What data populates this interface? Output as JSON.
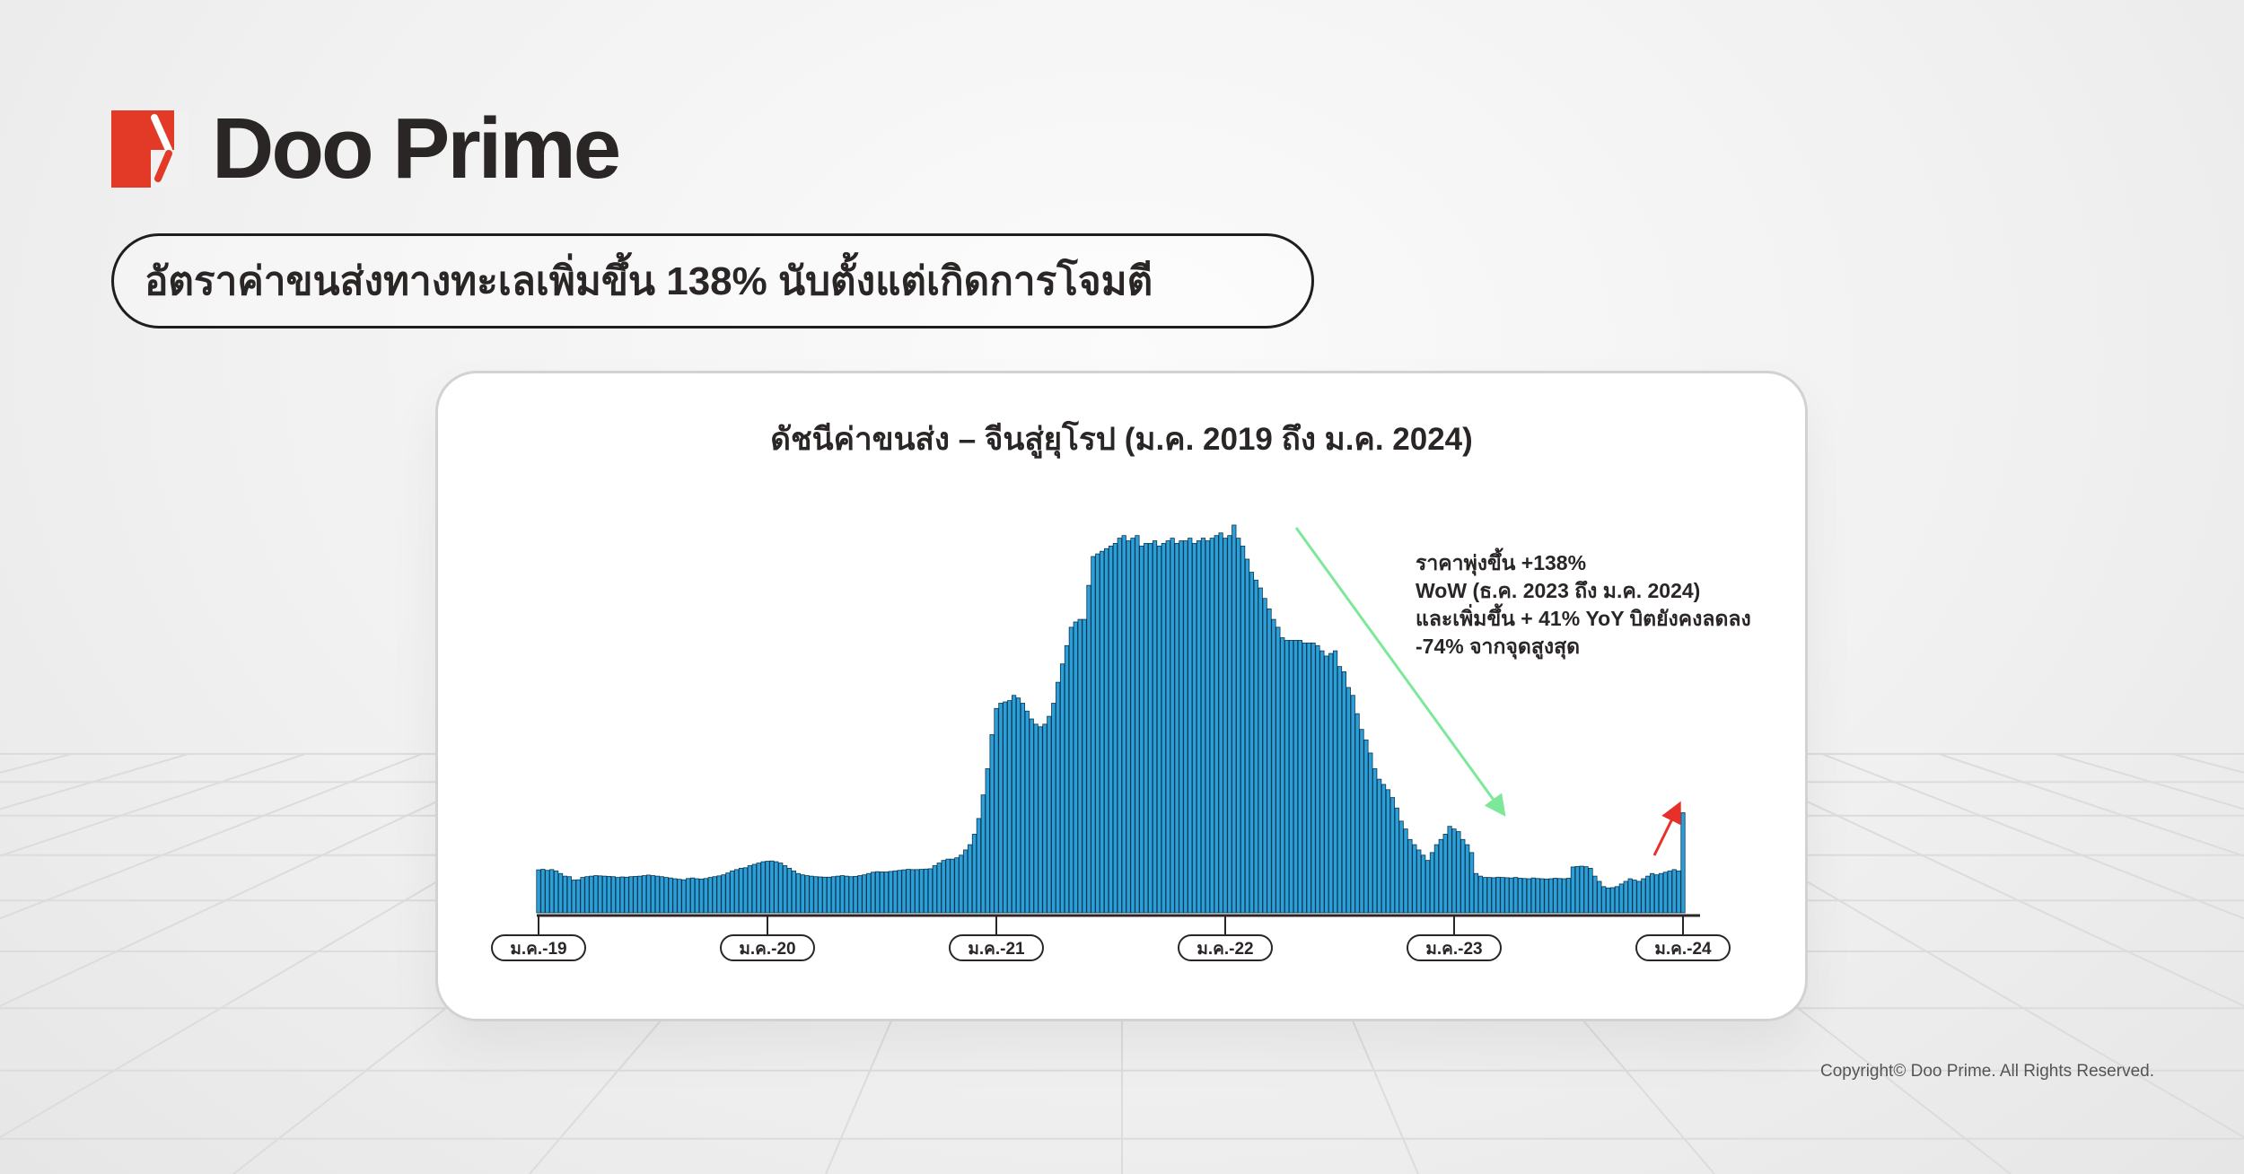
{
  "brand": {
    "name": "Doo Prime",
    "logo_color": "#e23a26",
    "text_color": "#2b2626"
  },
  "headline": "อัตราค่าขนส่งทางทะเลเพิ่มขึ้น 138% นับตั้งแต่เกิดการโจมตี",
  "copyright": "Copyright© Doo Prime. All Rights Reserved.",
  "chart_data": {
    "type": "bar",
    "title": "ดัชนีค่าขนส่ง – จีนสู่ยุโรป (ม.ค. 2019 ถึง ม.ค. 2024)",
    "xlabel": "",
    "ylabel": "",
    "frequency": "weekly",
    "x_range": [
      "2019-01",
      "2024-01"
    ],
    "x_ticks": [
      "ม.ค.-19",
      "ม.ค.-20",
      "ม.ค.-21",
      "ม.ค.-22",
      "ม.ค.-23",
      "ม.ค.-24"
    ],
    "y_axis_shown": false,
    "grid": false,
    "bar_color": "#2a9fd8",
    "bar_edge_color": "#0f3550",
    "annotation": [
      "ราคาพุ่งขึ้น +138%",
      "WoW (ธ.ค. 2023 ถึง ม.ค. 2024)",
      "และเพิ่มขึ้น + 41% YoY บิตยังคงลดลง",
      "-74% จากจุดสูงสุด"
    ],
    "trend_arrows": [
      {
        "direction": "down",
        "color": "#7ee89a",
        "from": "2022-01",
        "to": "2023-01"
      },
      {
        "direction": "up",
        "color": "#e8302a",
        "to": "2024-01"
      }
    ],
    "values": [
      1640,
      1660,
      1620,
      1650,
      1600,
      1500,
      1400,
      1380,
      1250,
      1260,
      1350,
      1380,
      1400,
      1420,
      1410,
      1400,
      1390,
      1380,
      1350,
      1370,
      1360,
      1380,
      1390,
      1400,
      1420,
      1440,
      1420,
      1400,
      1380,
      1350,
      1330,
      1300,
      1280,
      1260,
      1310,
      1330,
      1300,
      1290,
      1310,
      1350,
      1380,
      1410,
      1450,
      1520,
      1600,
      1650,
      1700,
      1720,
      1800,
      1850,
      1900,
      1950,
      1970,
      1980,
      1950,
      1900,
      1800,
      1700,
      1600,
      1500,
      1450,
      1420,
      1400,
      1380,
      1370,
      1360,
      1360,
      1380,
      1400,
      1420,
      1400,
      1380,
      1390,
      1420,
      1450,
      1500,
      1550,
      1570,
      1560,
      1560,
      1580,
      1600,
      1620,
      1640,
      1660,
      1650,
      1650,
      1660,
      1670,
      1680,
      1800,
      1900,
      2000,
      2050,
      2050,
      2100,
      2200,
      2400,
      2600,
      3000,
      3600,
      4500,
      5500,
      6800,
      7800,
      8000,
      8050,
      8100,
      8300,
      8200,
      8000,
      7700,
      7400,
      7200,
      7100,
      7200,
      7500,
      8000,
      8800,
      9500,
      10200,
      10900,
      11100,
      11200,
      11200,
      12500,
      13600,
      13700,
      13800,
      13900,
      14000,
      14100,
      14300,
      14400,
      14200,
      14300,
      14400,
      14000,
      14100,
      14100,
      14200,
      14000,
      14100,
      14200,
      14300,
      14100,
      14200,
      14200,
      14300,
      14100,
      14200,
      14300,
      14200,
      14300,
      14400,
      14500,
      14300,
      14400,
      14800,
      14300,
      14000,
      13500,
      13000,
      12700,
      12400,
      12000,
      11600,
      11200,
      10900,
      10500,
      10400,
      10400,
      10400,
      10400,
      10300,
      10300,
      10300,
      10200,
      10000,
      9800,
      9900,
      10000,
      9400,
      9200,
      8600,
      8300,
      7600,
      7000,
      6600,
      6100,
      5500,
      5100,
      4900,
      4700,
      4400,
      4000,
      3500,
      3200,
      2800,
      2600,
      2400,
      2200,
      2000,
      2300,
      2600,
      2800,
      3000,
      3300,
      3200,
      3100,
      2800,
      2600,
      2300,
      1500,
      1400,
      1350,
      1350,
      1340,
      1360,
      1350,
      1340,
      1330,
      1350,
      1320,
      1310,
      1300,
      1330,
      1310,
      1300,
      1290,
      1300,
      1320,
      1310,
      1300,
      1320,
      1750,
      1770,
      1780,
      1760,
      1700,
      1400,
      1200,
      1000,
      950,
      960,
      1000,
      1100,
      1200,
      1300,
      1250,
      1200,
      1300,
      1400,
      1500,
      1450,
      1500,
      1550,
      1600,
      1650,
      1600,
      3820
    ]
  }
}
